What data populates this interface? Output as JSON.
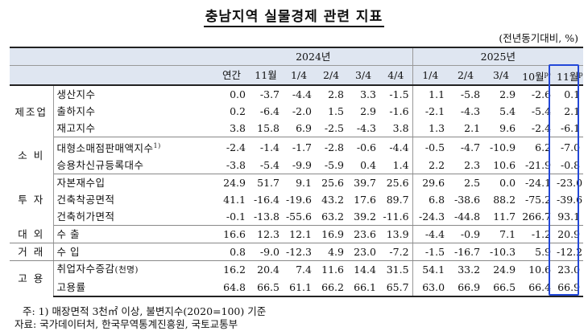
{
  "title": "충남지역 실물경제 관련 지표",
  "unit": "(전년동기대비, %)",
  "columns": {
    "year2024": "2024년",
    "year2025": "2025년",
    "periods": [
      "연간",
      "11월",
      "1/4",
      "2/4",
      "3/4",
      "4/4",
      "1/4",
      "2/4",
      "3/4",
      "10월",
      "11월"
    ],
    "sup_p": "p)"
  },
  "rows": [
    {
      "cat": "제조업",
      "item": "생산지수",
      "vals": [
        "0.0",
        "-3.7",
        "-4.4",
        "2.8",
        "3.3",
        "-1.5",
        "1.1",
        "-5.8",
        "2.9",
        "-2.6",
        "0.1"
      ]
    },
    {
      "cat": "",
      "item": "출하지수",
      "vals": [
        "0.2",
        "-6.4",
        "-2.0",
        "1.5",
        "2.9",
        "-1.6",
        "-2.1",
        "-4.3",
        "5.4",
        "-5.4",
        "2.1"
      ]
    },
    {
      "cat": "",
      "item": "재고지수",
      "vals": [
        "3.8",
        "15.8",
        "6.9",
        "-2.5",
        "-4.3",
        "3.8",
        "1.3",
        "2.1",
        "9.6",
        "-2.4",
        "-6.1"
      ]
    },
    {
      "cat": "소 비",
      "item": "대형소매점판매액지수",
      "sup": "1)",
      "vals": [
        "-2.4",
        "-1.4",
        "-1.7",
        "-2.8",
        "-0.6",
        "-4.4",
        "-0.5",
        "-4.7",
        "-10.9",
        "6.2",
        "-7.0"
      ]
    },
    {
      "cat": "",
      "item": "승용차신규등록대수",
      "vals": [
        "-3.8",
        "-5.4",
        "-9.9",
        "-5.9",
        "0.4",
        "1.4",
        "2.2",
        "2.3",
        "10.6",
        "-21.9",
        "-0.8"
      ]
    },
    {
      "cat": "투 자",
      "item": "자본재수입",
      "vals": [
        "24.9",
        "51.7",
        "9.1",
        "25.6",
        "39.7",
        "25.6",
        "29.6",
        "2.5",
        "0.0",
        "-24.1",
        "-23.0"
      ]
    },
    {
      "cat": "",
      "item": "건축착공면적",
      "vals": [
        "41.1",
        "-16.4",
        "-19.6",
        "43.2",
        "17.6",
        "89.7",
        "6.8",
        "-38.6",
        "88.2",
        "-75.2",
        "-39.6"
      ]
    },
    {
      "cat": "",
      "item": "건축허가면적",
      "vals": [
        "-0.1",
        "-13.8",
        "-55.6",
        "63.2",
        "39.2",
        "-11.6",
        "-24.3",
        "-44.8",
        "11.7",
        "266.7",
        "93.1"
      ]
    },
    {
      "cat": "대 외",
      "item": "수 출",
      "vals": [
        "16.6",
        "12.3",
        "12.1",
        "16.9",
        "23.6",
        "13.9",
        "-4.4",
        "-0.9",
        "7.1",
        "-1.2",
        "20.9"
      ]
    },
    {
      "cat": "거 래",
      "item": "수 입",
      "vals": [
        "0.8",
        "-9.0",
        "-12.3",
        "4.9",
        "23.0",
        "-7.2",
        "-1.5",
        "-16.7",
        "-10.3",
        "5.9",
        "-12.2"
      ]
    },
    {
      "cat": "고 용",
      "item": "취업자수증감",
      "item_small": "(천명)",
      "vals": [
        "16.2",
        "20.4",
        "7.4",
        "11.6",
        "14.4",
        "31.5",
        "54.1",
        "33.2",
        "24.9",
        "10.6",
        "23.0"
      ]
    },
    {
      "cat": "",
      "item": "고용률",
      "vals": [
        "64.8",
        "66.5",
        "61.1",
        "66.2",
        "66.1",
        "65.7",
        "63.0",
        "66.9",
        "66.5",
        "66.4",
        "66.9"
      ]
    }
  ],
  "notes": {
    "note1": "주: 1) 매장면적 3천㎡ 이상, 불변지수(2020=100) 기준",
    "source": "자료: 국가데이터처, 한국무역통계진흥원, 국토교통부"
  },
  "colors": {
    "header_bg": "#dfe6f1",
    "highlight_border": "#2348d8"
  }
}
